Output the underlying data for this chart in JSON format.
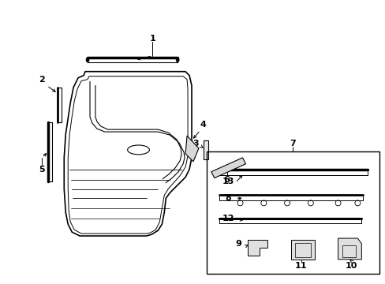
{
  "bg_color": "#ffffff",
  "line_color": "#000000",
  "figsize": [
    4.89,
    3.6
  ],
  "dpi": 100,
  "font_size": 8
}
